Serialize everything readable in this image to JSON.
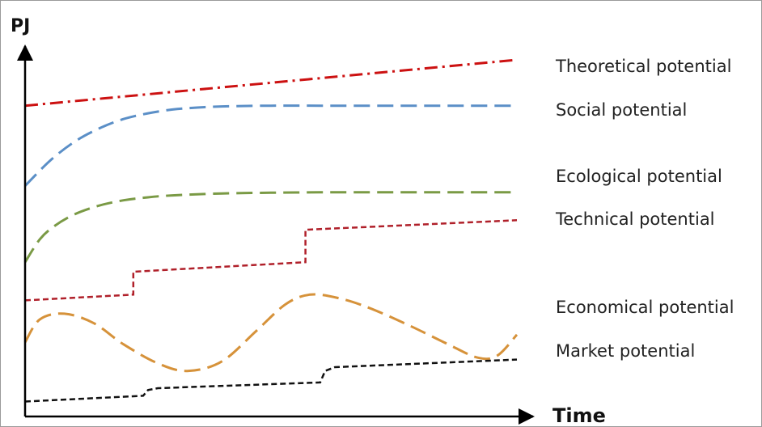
{
  "chart_data": {
    "type": "line",
    "title": "",
    "xlabel": "Time",
    "ylabel": "PJ",
    "xlim": [
      0,
      100
    ],
    "ylim": [
      0,
      100
    ],
    "grid": false,
    "legend": "right",
    "series": [
      {
        "name": "Theoretical potential",
        "color": "#cc1111",
        "dash": "dash-dot",
        "x": [
          0,
          100
        ],
        "y": [
          81,
          93
        ]
      },
      {
        "name": "Social potential",
        "color": "#5b8fc7",
        "dash": "long-dash",
        "x": [
          0,
          5,
          10,
          15,
          20,
          25,
          30,
          35,
          40,
          50,
          60,
          70,
          80,
          90,
          100
        ],
        "y": [
          60,
          66.5,
          71.5,
          75,
          77.5,
          79,
          80,
          80.5,
          80.8,
          81,
          81,
          81,
          81,
          81,
          81
        ]
      },
      {
        "name": "Ecological potential",
        "color": "#7a9a45",
        "dash": "long-dash",
        "x": [
          0,
          3,
          6,
          10,
          15,
          20,
          25,
          30,
          40,
          50,
          60,
          70,
          80,
          90,
          100
        ],
        "y": [
          40,
          46,
          49.5,
          52.5,
          54.8,
          56.2,
          57,
          57.5,
          58,
          58.2,
          58.3,
          58.3,
          58.3,
          58.3,
          58.3
        ]
      },
      {
        "name": "Technical potential",
        "color": "#b0202a",
        "dash": "short-dash",
        "x": [
          0,
          22,
          22,
          57,
          57,
          100
        ],
        "y": [
          30,
          31.5,
          37.5,
          40,
          48.5,
          51
        ]
      },
      {
        "name": "Economical potential",
        "color": "#d6923a",
        "dash": "long-dash",
        "x": [
          0,
          3,
          8,
          14,
          20,
          27,
          33,
          40,
          47,
          53,
          58,
          64,
          70,
          78,
          86,
          92,
          96,
          100
        ],
        "y": [
          19,
          25,
          26.5,
          24,
          18.5,
          13.5,
          11.5,
          14,
          22,
          29,
          31.5,
          30.5,
          28,
          23.5,
          18.5,
          15,
          15.5,
          21
        ]
      },
      {
        "name": "Market potential",
        "color": "#111111",
        "dash": "short-dash",
        "x": [
          0,
          24,
          25,
          27,
          60,
          61,
          63,
          100
        ],
        "y": [
          3.5,
          5,
          6.5,
          7,
          8.5,
          11.5,
          12.5,
          14.5
        ]
      }
    ]
  }
}
